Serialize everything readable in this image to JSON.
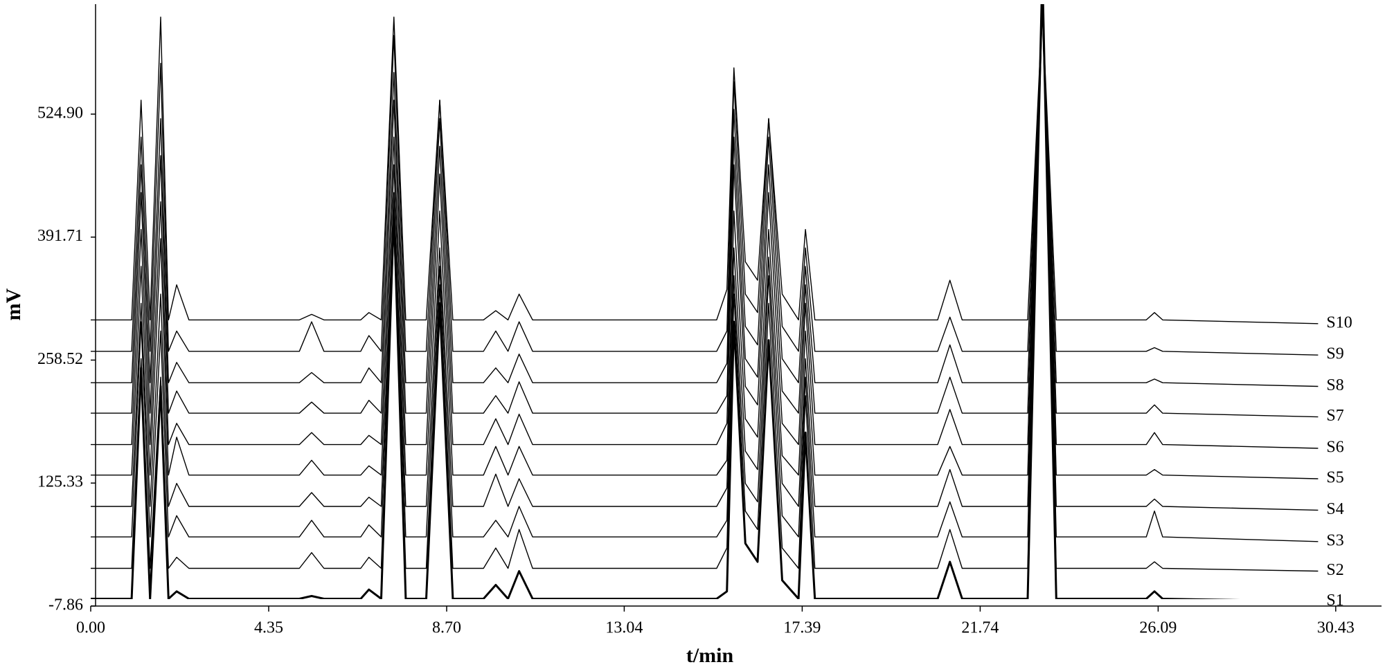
{
  "chart_data": {
    "type": "line",
    "x_label": "t/min",
    "y_label": "mV",
    "xlim": [
      0,
      31.55
    ],
    "ylim": [
      -7.86,
      644
    ],
    "xticks": [
      {
        "value": 0,
        "label": "0.00"
      },
      4.35,
      {
        "value": 8.7,
        "label": "8.70"
      },
      13.04,
      17.39,
      21.74,
      26.09,
      30.43
    ],
    "yticks": [
      -7.86,
      125.33,
      258.52,
      391.71,
      {
        "value": 524.9,
        "label": "524.90"
      }
    ],
    "x": [
      0,
      1.0,
      1.23,
      1.45,
      1.71,
      1.9,
      2.1,
      2.4,
      5.1,
      5.4,
      5.7,
      6.6,
      6.8,
      7.1,
      7.41,
      7.7,
      8.2,
      8.53,
      8.85,
      9.6,
      9.9,
      10.2,
      10.47,
      10.8,
      15.3,
      15.55,
      15.72,
      16.0,
      16.3,
      16.57,
      16.9,
      17.3,
      17.47,
      17.7,
      20.7,
      21.0,
      21.3,
      22.9,
      23.26,
      23.6,
      25.8,
      26.0,
      26.2,
      30.0
    ],
    "series": [
      {
        "name": "S1",
        "color": "#000000",
        "values": [
          0,
          0,
          250,
          0,
          230,
          0,
          8,
          0,
          0,
          3,
          0,
          0,
          10,
          0,
          420,
          0,
          0,
          320,
          0,
          0,
          15,
          0,
          30,
          0,
          0,
          8,
          300,
          60,
          40,
          280,
          20,
          0,
          180,
          0,
          0,
          40,
          0,
          0,
          680,
          0,
          0,
          8,
          0,
          -3
        ]
      },
      {
        "name": "S2",
        "color": "#000000",
        "values": [
          33,
          33,
          260,
          33,
          240,
          33,
          45,
          33,
          33,
          50,
          33,
          33,
          45,
          33,
          400,
          33,
          33,
          340,
          33,
          33,
          55,
          33,
          75,
          33,
          33,
          55,
          330,
          95,
          75,
          320,
          55,
          33,
          220,
          33,
          33,
          75,
          33,
          33,
          660,
          33,
          33,
          40,
          33,
          30
        ]
      },
      {
        "name": "S3",
        "color": "#000000",
        "values": [
          67,
          67,
          300,
          67,
          290,
          67,
          90,
          67,
          67,
          85,
          67,
          67,
          80,
          67,
          430,
          67,
          67,
          360,
          67,
          67,
          85,
          67,
          100,
          67,
          67,
          85,
          350,
          125,
          105,
          350,
          90,
          67,
          240,
          67,
          67,
          105,
          67,
          67,
          650,
          67,
          67,
          95,
          67,
          62
        ]
      },
      {
        "name": "S4",
        "color": "#000000",
        "values": [
          100,
          100,
          320,
          100,
          330,
          100,
          125,
          100,
          100,
          115,
          100,
          100,
          110,
          100,
          440,
          100,
          100,
          380,
          100,
          100,
          135,
          100,
          130,
          100,
          100,
          120,
          380,
          160,
          140,
          370,
          125,
          100,
          260,
          100,
          100,
          140,
          100,
          100,
          640,
          100,
          100,
          108,
          100,
          96
        ]
      },
      {
        "name": "S5",
        "color": "#000000",
        "values": [
          134,
          134,
          360,
          134,
          390,
          134,
          175,
          134,
          134,
          150,
          134,
          134,
          144,
          134,
          470,
          134,
          134,
          420,
          134,
          134,
          165,
          134,
          165,
          134,
          134,
          150,
          420,
          195,
          175,
          400,
          155,
          134,
          290,
          134,
          134,
          165,
          134,
          134,
          640,
          134,
          134,
          140,
          134,
          130
        ]
      },
      {
        "name": "S6",
        "color": "#000000",
        "values": [
          167,
          167,
          400,
          167,
          430,
          167,
          190,
          167,
          167,
          180,
          167,
          167,
          177,
          167,
          500,
          167,
          167,
          460,
          167,
          167,
          195,
          167,
          200,
          167,
          167,
          190,
          470,
          230,
          210,
          440,
          190,
          167,
          320,
          167,
          167,
          205,
          167,
          167,
          640,
          167,
          167,
          180,
          167,
          163
        ]
      },
      {
        "name": "S7",
        "color": "#000000",
        "values": [
          201,
          201,
          440,
          201,
          480,
          201,
          225,
          201,
          201,
          213,
          201,
          201,
          215,
          201,
          540,
          201,
          201,
          490,
          201,
          201,
          220,
          201,
          235,
          201,
          201,
          220,
          500,
          260,
          240,
          470,
          225,
          201,
          340,
          201,
          201,
          240,
          201,
          201,
          640,
          201,
          201,
          210,
          201,
          197
        ]
      },
      {
        "name": "S8",
        "color": "#000000",
        "values": [
          234,
          234,
          470,
          234,
          520,
          234,
          256,
          234,
          234,
          245,
          234,
          234,
          250,
          234,
          570,
          234,
          234,
          520,
          234,
          234,
          250,
          234,
          265,
          234,
          234,
          255,
          530,
          295,
          275,
          500,
          260,
          234,
          360,
          234,
          234,
          275,
          234,
          234,
          640,
          234,
          234,
          238,
          234,
          230
        ]
      },
      {
        "name": "S9",
        "color": "#000000",
        "values": [
          268,
          268,
          500,
          268,
          580,
          268,
          290,
          268,
          268,
          300,
          268,
          268,
          285,
          268,
          610,
          268,
          268,
          540,
          268,
          268,
          290,
          268,
          300,
          268,
          268,
          290,
          560,
          330,
          310,
          520,
          295,
          268,
          380,
          268,
          268,
          305,
          268,
          268,
          640,
          268,
          268,
          272,
          268,
          264
        ]
      },
      {
        "name": "S10",
        "color": "#000000",
        "values": [
          302,
          302,
          540,
          302,
          630,
          302,
          340,
          302,
          302,
          308,
          302,
          302,
          310,
          302,
          630,
          302,
          302,
          540,
          302,
          302,
          312,
          302,
          330,
          302,
          302,
          335,
          575,
          365,
          345,
          520,
          330,
          302,
          400,
          302,
          302,
          345,
          302,
          302,
          640,
          302,
          302,
          310,
          302,
          298
        ]
      }
    ]
  }
}
